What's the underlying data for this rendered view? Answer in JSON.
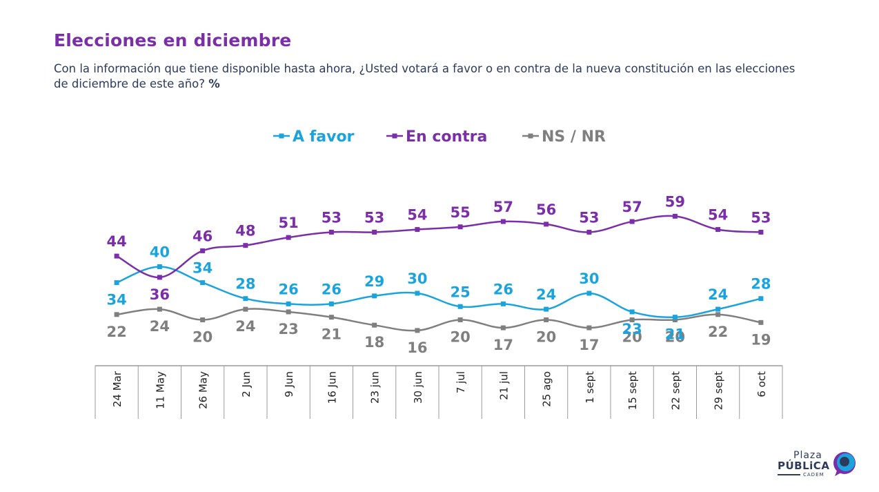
{
  "header": {
    "title": "Elecciones en diciembre",
    "subtitle": "Con la información que tiene disponible hasta ahora, ¿Usted votará a favor o en contra de la nueva constitución en las elecciones de diciembre de este año?",
    "subtitle_unit": "%"
  },
  "logo": {
    "line1": "Plaza",
    "line2": "PÚBLiCA",
    "line3": "CADEM"
  },
  "chart_data": {
    "type": "line",
    "categories": [
      "24 Mar",
      "11 May",
      "26 May",
      "2 Jun",
      "9 Jun",
      "16 Jun",
      "23 jun",
      "30 jun",
      "7 jul",
      "21 jul",
      "25 ago",
      "1 sept",
      "15 sept",
      "22 sept",
      "29 sept",
      "6 oct"
    ],
    "legend_position": "top",
    "series": [
      {
        "name": "A favor",
        "color": "#1aa3dc",
        "values": [
          34,
          40,
          34,
          28,
          26,
          26,
          29,
          30,
          25,
          26,
          24,
          30,
          23,
          21,
          24,
          28
        ]
      },
      {
        "name": "En contra",
        "color": "#7a2ea8",
        "values": [
          44,
          36,
          46,
          48,
          51,
          53,
          53,
          54,
          55,
          57,
          56,
          53,
          57,
          59,
          54,
          53
        ]
      },
      {
        "name": "NS / NR",
        "color": "#7f7f7f",
        "values": [
          22,
          24,
          20,
          24,
          23,
          21,
          18,
          16,
          20,
          17,
          20,
          17,
          20,
          20,
          22,
          19
        ]
      }
    ],
    "label_positions": [
      [
        "below",
        "above",
        "above",
        "above",
        "above",
        "above",
        "above",
        "above",
        "above",
        "above",
        "above",
        "above",
        "below",
        "below",
        "above",
        "above"
      ],
      [
        "above",
        "below",
        "above",
        "above",
        "above",
        "above",
        "above",
        "above",
        "above",
        "above",
        "above",
        "above",
        "above",
        "above",
        "above",
        "above"
      ],
      [
        "below",
        "below",
        "below",
        "below",
        "below",
        "below",
        "below",
        "below",
        "below",
        "below",
        "below",
        "below",
        "below",
        "below",
        "below",
        "below"
      ]
    ],
    "grid": false
  }
}
